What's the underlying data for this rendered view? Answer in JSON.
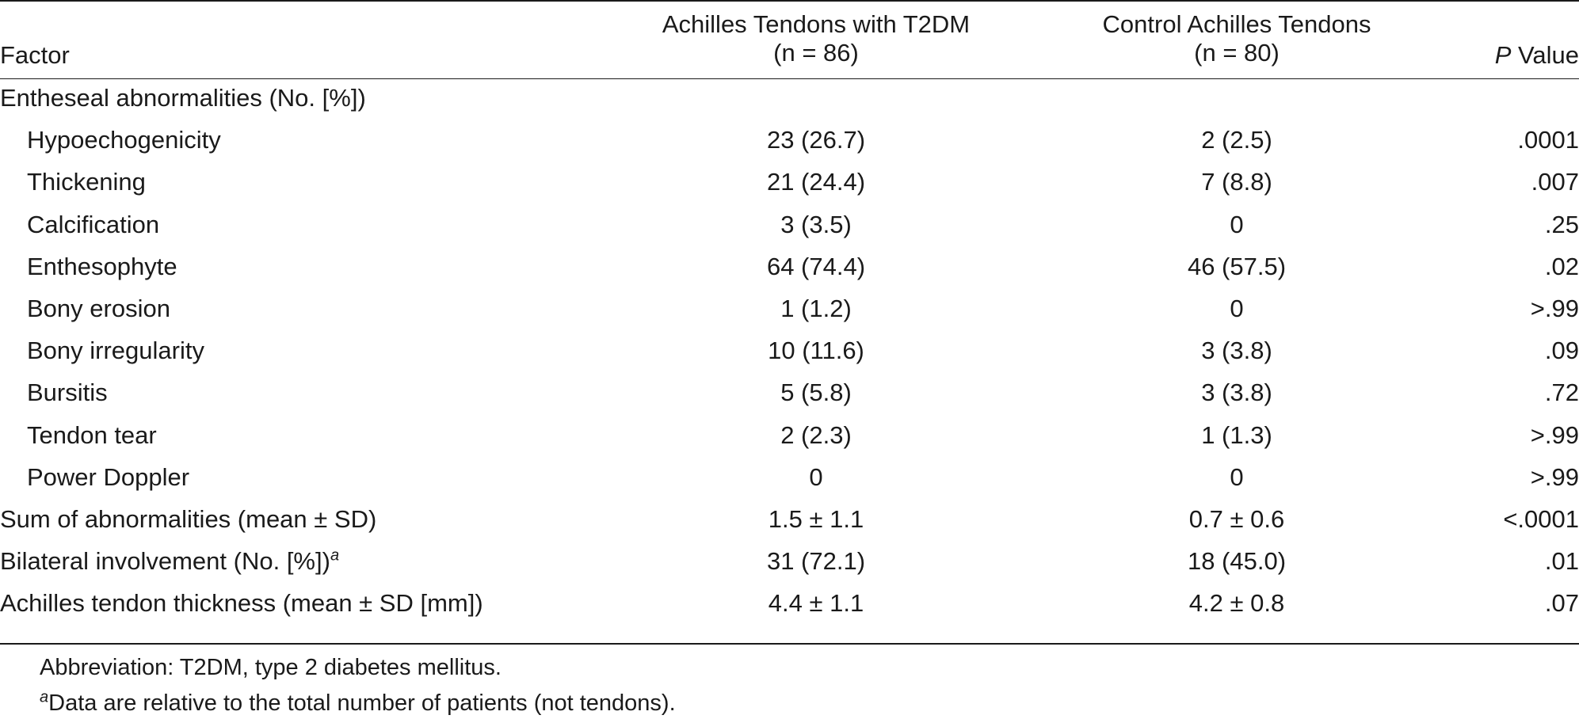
{
  "table": {
    "headers": {
      "factor": "Factor",
      "group1_line1": "Achilles Tendons with T2DM",
      "group1_line2": "(n = 86)",
      "group2_line1": "Control Achilles Tendons",
      "group2_line2": "(n = 80)",
      "pvalue_italic": "P",
      "pvalue_rest": " Value"
    },
    "rows": [
      {
        "factor": "Entheseal abnormalities (No. [%])",
        "indent": false,
        "t2dm": "",
        "control": "",
        "p": ""
      },
      {
        "factor": "Hypoechogenicity",
        "indent": true,
        "t2dm": "23 (26.7)",
        "control": "2 (2.5)",
        "p": ".0001"
      },
      {
        "factor": "Thickening",
        "indent": true,
        "t2dm": "21 (24.4)",
        "control": "7 (8.8)",
        "p": ".007"
      },
      {
        "factor": "Calcification",
        "indent": true,
        "t2dm": "3 (3.5)",
        "control": "0",
        "p": ".25"
      },
      {
        "factor": "Enthesophyte",
        "indent": true,
        "t2dm": "64 (74.4)",
        "control": "46 (57.5)",
        "p": ".02"
      },
      {
        "factor": "Bony erosion",
        "indent": true,
        "t2dm": "1 (1.2)",
        "control": "0",
        "p": ">.99"
      },
      {
        "factor": "Bony irregularity",
        "indent": true,
        "t2dm": "10 (11.6)",
        "control": "3 (3.8)",
        "p": ".09"
      },
      {
        "factor": "Bursitis",
        "indent": true,
        "t2dm": "5 (5.8)",
        "control": "3 (3.8)",
        "p": ".72"
      },
      {
        "factor": "Tendon tear",
        "indent": true,
        "t2dm": "2 (2.3)",
        "control": "1 (1.3)",
        "p": ">.99"
      },
      {
        "factor": "Power Doppler",
        "indent": true,
        "t2dm": "0",
        "control": "0",
        "p": ">.99"
      },
      {
        "factor": "Sum of abnormalities (mean ± SD)",
        "indent": false,
        "t2dm": "1.5 ± 1.1",
        "control": "0.7 ± 0.6",
        "p": "<.0001"
      },
      {
        "factor": "Bilateral involvement (No. [%])",
        "indent": false,
        "factor_sup": "a",
        "t2dm": "31 (72.1)",
        "control": "18 (45.0)",
        "p": ".01"
      },
      {
        "factor": "Achilles tendon thickness (mean ± SD [mm])",
        "indent": false,
        "t2dm": "4.4 ± 1.1",
        "control": "4.2 ± 0.8",
        "p": ".07"
      }
    ]
  },
  "footnotes": {
    "abbreviation": "Abbreviation: T2DM, type 2 diabetes mellitus.",
    "note_marker": "a",
    "note_text": "Data are relative to the total number of patients (not tendons)."
  }
}
